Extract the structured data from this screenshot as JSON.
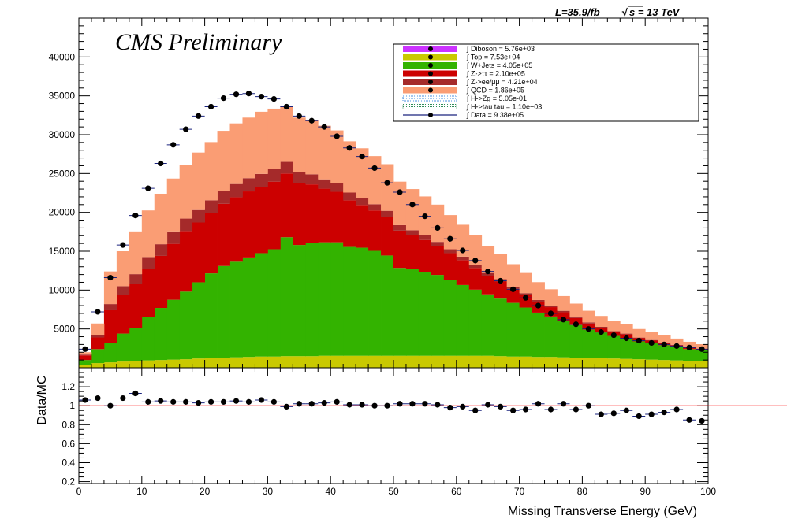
{
  "header": {
    "cms_label": "CMS Preliminary",
    "lumi_label": "L=35.9/fb",
    "energy_label": "s = 13 TeV",
    "sqrt_symbol": "√"
  },
  "chart_data": [
    {
      "type": "area",
      "subtype": "stacked-histogram",
      "xlabel": "Missing Transverse Energy (GeV)",
      "ylabel": "",
      "xlim": [
        0,
        100
      ],
      "ylim": [
        0,
        45000
      ],
      "x_ticks": [
        0,
        10,
        20,
        30,
        40,
        50,
        60,
        70,
        80,
        90,
        100
      ],
      "y_ticks": [
        5000,
        10000,
        15000,
        20000,
        25000,
        30000,
        35000,
        40000
      ],
      "legend_position": "top-right",
      "grid": false,
      "bin_edges": [
        0,
        2,
        4,
        6,
        8,
        10,
        12,
        14,
        16,
        18,
        20,
        22,
        24,
        26,
        28,
        30,
        32,
        34,
        36,
        38,
        40,
        42,
        44,
        46,
        48,
        50,
        52,
        54,
        56,
        58,
        60,
        62,
        64,
        66,
        68,
        70,
        72,
        74,
        76,
        78,
        80,
        82,
        84,
        86,
        88,
        90,
        92,
        94,
        96,
        98,
        100
      ],
      "series": [
        {
          "name": "Top",
          "legend_text": "∫ Top = 7.53e+04",
          "color": "#c9c900",
          "values": [
            400,
            600,
            700,
            800,
            850,
            950,
            1000,
            1050,
            1100,
            1200,
            1250,
            1300,
            1350,
            1400,
            1450,
            1450,
            1500,
            1500,
            1500,
            1550,
            1550,
            1550,
            1550,
            1550,
            1550,
            1550,
            1550,
            1550,
            1550,
            1550,
            1550,
            1550,
            1550,
            1500,
            1450,
            1450,
            1400,
            1400,
            1350,
            1300,
            1300,
            1250,
            1200,
            1150,
            1100,
            1050,
            1000,
            950,
            900,
            850
          ]
        },
        {
          "name": "W+Jets",
          "legend_text": "∫ W+Jets = 4.05e+05",
          "color": "#33b300",
          "values": [
            600,
            1800,
            2500,
            3600,
            4300,
            5600,
            6700,
            7700,
            8700,
            9800,
            10900,
            11800,
            12300,
            12800,
            13300,
            13800,
            15300,
            14300,
            14600,
            14600,
            14600,
            14000,
            13900,
            13500,
            12900,
            11300,
            11200,
            10800,
            10400,
            9700,
            9100,
            8500,
            7900,
            7400,
            6900,
            6300,
            5700,
            5200,
            4700,
            4200,
            3600,
            3300,
            2900,
            2700,
            2300,
            2100,
            1900,
            1700,
            1500,
            1400
          ]
        },
        {
          "name": "Z->ττ",
          "legend_text": "∫ Z->ττ = 2.10e+05",
          "color": "#cc0000",
          "values": [
            600,
            1500,
            4200,
            5000,
            5600,
            6200,
            6700,
            7200,
            7800,
            7700,
            7800,
            8000,
            8300,
            8500,
            8500,
            8700,
            8200,
            8000,
            7500,
            6900,
            6500,
            6000,
            5500,
            5200,
            5000,
            4800,
            4300,
            4100,
            3700,
            3500,
            3200,
            2800,
            2400,
            2200,
            1800,
            1600,
            1400,
            1200,
            1100,
            900,
            800,
            600,
            500,
            450,
            400,
            350,
            300,
            250,
            200,
            150
          ]
        },
        {
          "name": "Z->ee/μμ",
          "legend_text": "∫ Z->ee/μμ = 4.21e+04",
          "color": "#a52a2a",
          "values": [
            100,
            300,
            800,
            1100,
            1300,
            1500,
            1500,
            1600,
            1600,
            1600,
            1600,
            1700,
            1700,
            1700,
            1700,
            1600,
            1500,
            1400,
            1300,
            1200,
            1100,
            1000,
            900,
            800,
            750,
            700,
            650,
            600,
            550,
            500,
            450,
            400,
            350,
            300,
            280,
            250,
            220,
            200,
            180,
            160,
            140,
            120,
            110,
            100,
            90,
            80,
            70,
            60,
            50,
            40
          ]
        },
        {
          "name": "QCD",
          "legend_text": "∫ QCD = 1.86e+05",
          "color": "#fa9d74",
          "values": [
            300,
            1500,
            4200,
            4500,
            5500,
            6000,
            6500,
            6800,
            6900,
            7400,
            7500,
            7700,
            7800,
            7800,
            8000,
            7800,
            7200,
            7000,
            7000,
            6900,
            6800,
            6600,
            6400,
            6200,
            6000,
            5600,
            5300,
            5000,
            4800,
            4400,
            4100,
            3800,
            3500,
            3200,
            2900,
            2600,
            2300,
            2100,
            1900,
            1700,
            1500,
            1400,
            1300,
            1200,
            1100,
            1000,
            900,
            800,
            700,
            600
          ]
        },
        {
          "name": "Diboson",
          "legend_text": "∫ Diboson = 5.76e+03",
          "color": "#cc33ff",
          "legend_only": true
        },
        {
          "name": "H->Zg",
          "legend_text": "∫ H->Zg = 5.05e-01",
          "color": "#4a90e2",
          "legend_only": true
        },
        {
          "name": "H->tau tau",
          "legend_text": "∫ H->tau tau = 1.10e+03",
          "color": "#2e8b57",
          "legend_only": true
        },
        {
          "name": "Data",
          "legend_text": "∫ Data = 9.38e+05",
          "color": "#000000",
          "marker": "point",
          "x": [
            1,
            3,
            5,
            7,
            9,
            11,
            13,
            15,
            17,
            19,
            21,
            23,
            25,
            27,
            29,
            31,
            33,
            35,
            37,
            39,
            41,
            43,
            45,
            47,
            49,
            51,
            53,
            55,
            57,
            59,
            61,
            63,
            65,
            67,
            69,
            71,
            73,
            75,
            77,
            79,
            81,
            83,
            85,
            87,
            89,
            91,
            93,
            95,
            97,
            99
          ],
          "values": [
            2400,
            7200,
            11600,
            15800,
            19600,
            23100,
            26300,
            28700,
            30700,
            32400,
            33600,
            34700,
            35200,
            35300,
            34900,
            34600,
            33600,
            32400,
            31800,
            31000,
            29800,
            28300,
            27200,
            25700,
            23800,
            22600,
            21000,
            19500,
            18000,
            16600,
            15100,
            13800,
            12400,
            11200,
            10100,
            9000,
            8000,
            7000,
            6200,
            5600,
            5000,
            4600,
            4200,
            3800,
            3500,
            3200,
            3000,
            2800,
            2600,
            2400
          ]
        }
      ]
    },
    {
      "type": "scatter",
      "subtype": "ratio",
      "ylabel": "Data/MC",
      "xlabel": "",
      "xlim": [
        0,
        100
      ],
      "ylim": [
        0.18,
        1.4
      ],
      "y_ticks": [
        0.2,
        0.4,
        0.6,
        0.8,
        1,
        1.2
      ],
      "reference_line": 1,
      "reference_color": "#ff0000",
      "x": [
        1,
        3,
        5,
        7,
        9,
        11,
        13,
        15,
        17,
        19,
        21,
        23,
        25,
        27,
        29,
        31,
        33,
        35,
        37,
        39,
        41,
        43,
        45,
        47,
        49,
        51,
        53,
        55,
        57,
        59,
        61,
        63,
        65,
        67,
        69,
        71,
        73,
        75,
        77,
        79,
        81,
        83,
        85,
        87,
        89,
        91,
        93,
        95,
        97,
        99
      ],
      "values": [
        1.06,
        1.08,
        1.0,
        1.08,
        1.13,
        1.04,
        1.05,
        1.04,
        1.04,
        1.03,
        1.04,
        1.04,
        1.05,
        1.04,
        1.06,
        1.04,
        0.99,
        1.02,
        1.02,
        1.03,
        1.04,
        1.01,
        1.01,
        1.0,
        1.0,
        1.02,
        1.02,
        1.02,
        1.01,
        0.98,
        0.99,
        0.95,
        1.01,
        0.99,
        0.95,
        0.96,
        1.02,
        0.96,
        1.02,
        0.96,
        1.0,
        0.91,
        0.92,
        0.95,
        0.89,
        0.91,
        0.93,
        0.96,
        0.85,
        0.84
      ]
    }
  ]
}
